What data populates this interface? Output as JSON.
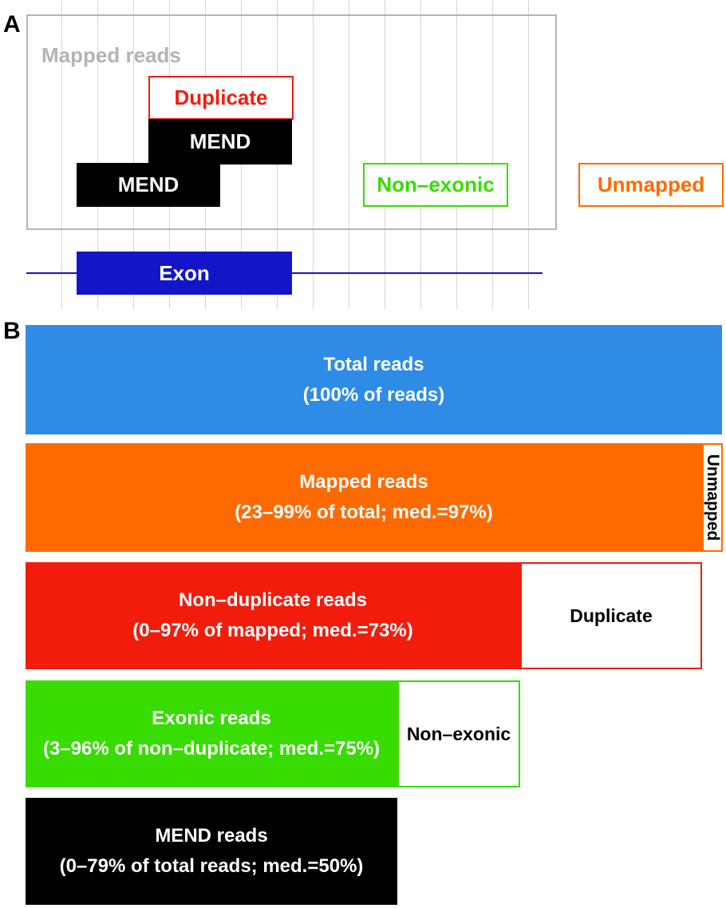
{
  "panel_a": {
    "label": "A",
    "mapped_reads_label": "Mapped reads",
    "duplicate_label": "Duplicate",
    "mend_upper_label": "MEND",
    "mend_lower_label": "MEND",
    "non_exonic_label": "Non–exonic",
    "unmapped_label": "Unmapped",
    "exon_label": "Exon"
  },
  "panel_b": {
    "label": "B",
    "total": {
      "title": "Total reads",
      "detail": "(100% of reads)"
    },
    "mapped": {
      "title": "Mapped reads",
      "detail": "(23–99% of total; med.=97%)",
      "remainder_label": "Unmapped",
      "fraction_of_parent": 0.97
    },
    "non_duplicate": {
      "title": "Non–duplicate reads",
      "detail": "(0–97% of mapped; med.=73%)",
      "remainder_label": "Duplicate",
      "fraction_of_parent": 0.73
    },
    "exonic": {
      "title": "Exonic reads",
      "detail": "(3–96% of non–duplicate; med.=75%)",
      "remainder_label": "Non–exonic",
      "fraction_of_parent": 0.75
    },
    "mend": {
      "title": "MEND reads",
      "detail": "(0–79% of total reads; med.=50%)"
    }
  },
  "colors": {
    "total": "#2f8ce6",
    "mapped": "#ff6a00",
    "non_duplicate": "#f21c0c",
    "exonic": "#38dc00",
    "mend": "#000000",
    "exon": "#1414c8",
    "mapped_box": "#b4b4b4"
  }
}
